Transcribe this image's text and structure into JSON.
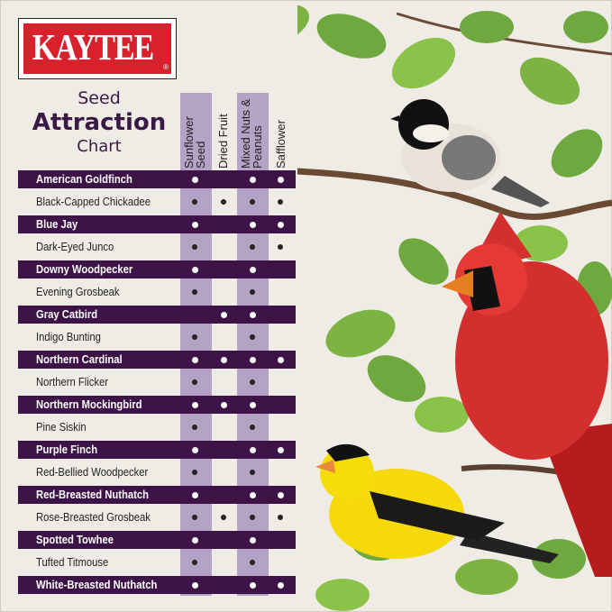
{
  "brand": {
    "logo_text": "KAYTEE",
    "registered": "®",
    "colors": {
      "red": "#d9212e",
      "purple": "#3d1247",
      "lavender": "#b5a3c6"
    }
  },
  "title": {
    "line1": "Seed",
    "line2": "Attraction",
    "line3": "Chart"
  },
  "chart_data": {
    "type": "table",
    "title": "Seed Attraction Chart",
    "columns": [
      "Sunflower Seed",
      "Dried Fruit",
      "Mixed Nuts & Peanuts",
      "Safflower"
    ],
    "rows": [
      {
        "bird": "American Goldfinch",
        "values": [
          true,
          false,
          true,
          true
        ]
      },
      {
        "bird": "Black-Capped Chickadee",
        "values": [
          true,
          true,
          true,
          true
        ]
      },
      {
        "bird": "Blue Jay",
        "values": [
          true,
          false,
          true,
          true
        ]
      },
      {
        "bird": "Dark-Eyed Junco",
        "values": [
          true,
          false,
          true,
          true
        ]
      },
      {
        "bird": "Downy Woodpecker",
        "values": [
          true,
          false,
          true,
          false
        ]
      },
      {
        "bird": "Evening Grosbeak",
        "values": [
          true,
          false,
          true,
          false
        ]
      },
      {
        "bird": "Gray Catbird",
        "values": [
          false,
          true,
          true,
          false
        ]
      },
      {
        "bird": "Indigo Bunting",
        "values": [
          true,
          false,
          true,
          false
        ]
      },
      {
        "bird": "Northern Cardinal",
        "values": [
          true,
          true,
          true,
          true
        ]
      },
      {
        "bird": "Northern Flicker",
        "values": [
          true,
          false,
          true,
          false
        ]
      },
      {
        "bird": "Northern Mockingbird",
        "values": [
          true,
          true,
          true,
          false
        ]
      },
      {
        "bird": "Pine Siskin",
        "values": [
          true,
          false,
          true,
          false
        ]
      },
      {
        "bird": "Purple Finch",
        "values": [
          true,
          false,
          true,
          true
        ]
      },
      {
        "bird": "Red-Bellied Woodpecker",
        "values": [
          true,
          false,
          true,
          false
        ]
      },
      {
        "bird": "Red-Breasted Nuthatch",
        "values": [
          true,
          false,
          true,
          true
        ]
      },
      {
        "bird": "Rose-Breasted Grosbeak",
        "values": [
          true,
          true,
          true,
          true
        ]
      },
      {
        "bird": "Spotted Towhee",
        "values": [
          true,
          false,
          true,
          false
        ]
      },
      {
        "bird": "Tufted Titmouse",
        "values": [
          true,
          false,
          true,
          false
        ]
      },
      {
        "bird": "White-Breasted Nuthatch",
        "values": [
          true,
          false,
          true,
          true
        ]
      }
    ]
  },
  "illustration": {
    "subjects": [
      "black-capped-chickadee",
      "northern-cardinal",
      "american-goldfinch",
      "leafy-branches"
    ]
  }
}
